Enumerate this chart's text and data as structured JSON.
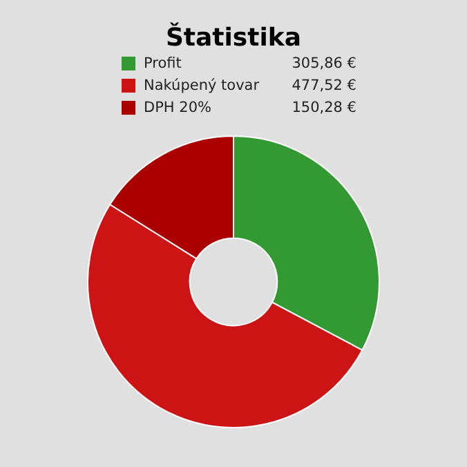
{
  "chart_data": {
    "type": "donut",
    "title": "Štatistika",
    "categories": [
      "Profit",
      "Nakúpený tovar",
      "DPH 20%"
    ],
    "values": [
      305.86,
      477.52,
      150.28
    ],
    "value_labels": [
      "305,86 €",
      "477,52 €",
      "150,28 €"
    ],
    "colors": [
      "#339933",
      "#cc1414",
      "#aa0000"
    ],
    "legend": "top"
  }
}
